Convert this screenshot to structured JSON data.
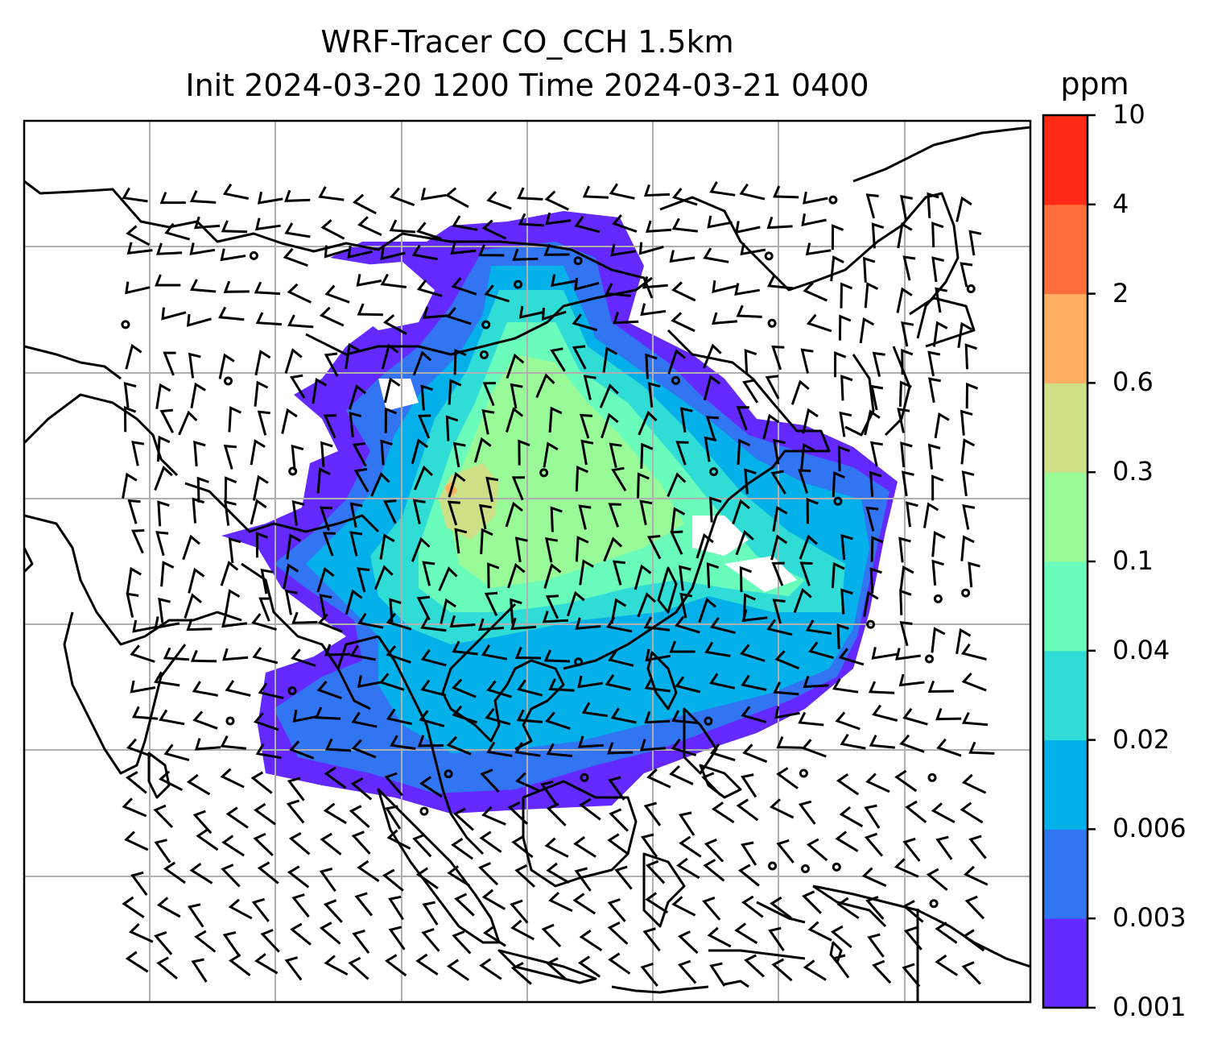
{
  "title": {
    "line1": "WRF-Tracer CO_CCH 1.5km",
    "line2": "Init 2024-03-20 1200 Time 2024-03-21 0400"
  },
  "colorbar": {
    "unit": "ppm",
    "levels": [
      "0.001",
      "0.003",
      "0.006",
      "0.02",
      "0.04",
      "0.1",
      "0.3",
      "0.6",
      "2",
      "4",
      "10"
    ],
    "colors": [
      "#6329ff",
      "#3275f3",
      "#03b0e9",
      "#2fdcd6",
      "#6afcbb",
      "#98fb98",
      "#cde086",
      "#ffae63",
      "#ff6d3c",
      "#ff2a15"
    ]
  },
  "map": {
    "colors": {
      "coast": "#000000",
      "grid": "#b0b0b0",
      "barb": "#000000"
    },
    "note_values": "plume shows CO tracer concentration in ppm; wind barbs black"
  }
}
